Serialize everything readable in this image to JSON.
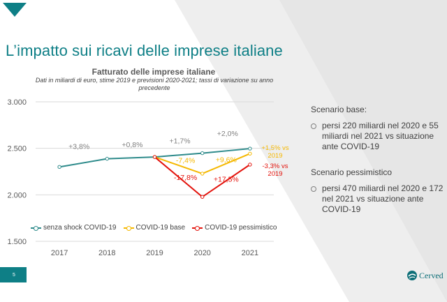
{
  "slide": {
    "title": "L’impatto sui ricavi delle imprese italiane",
    "page_number": "5",
    "logo_text": "Cerved",
    "accent_color": "#0e7f86"
  },
  "side_panel": {
    "base_heading": "Scenario base:",
    "base_bullet": "persi 220 miliardi nel 2020 e 55 miliardi nel 2021 vs situazione ante COVID-19",
    "pess_heading": "Scenario pessimistico",
    "pess_bullet": "persi 470 miliardi nel 2020 e 172 nel 2021 vs situazione ante COVID-19"
  },
  "chart_data": {
    "type": "line",
    "title": "Fatturato delle imprese italiane",
    "subtitle": "Dati in miliardi di euro, stime 2019 e previsioni 2020-2021; tassi di variazione su anno precedente",
    "categories": [
      "2017",
      "2018",
      "2019",
      "2020",
      "2021"
    ],
    "ylim": [
      1500,
      3000
    ],
    "yticks": [
      1500,
      2000,
      2500,
      3000
    ],
    "ytick_labels": [
      "1.500",
      "2.000",
      "2.500",
      "3.000"
    ],
    "grid": true,
    "legend_position": "bottom",
    "series": [
      {
        "name": "senza shock COVID-19",
        "color": "#2e8b8b",
        "values": [
          2300,
          2388,
          2407,
          2448,
          2497
        ],
        "labels": [
          null,
          "+3,8%",
          "+0,8%",
          "+1,7%",
          "+2,0%"
        ],
        "label_color": "#7f7f7f"
      },
      {
        "name": "COVID-19 base",
        "color": "#f5b800",
        "values": [
          null,
          null,
          2407,
          2228,
          2443
        ],
        "labels": [
          null,
          null,
          null,
          "-7,4%",
          "+9,6%"
        ],
        "label_color": "#f5b800"
      },
      {
        "name": "COVID-19 pessimistico",
        "color": "#e3120b",
        "values": [
          null,
          null,
          2407,
          1978,
          2325
        ],
        "labels": [
          null,
          null,
          null,
          "-17,8%",
          "+17,5%"
        ],
        "label_color": "#e3120b"
      }
    ],
    "annotations": [
      {
        "text": "+1,5% vs 2019",
        "color": "#f5b800",
        "series": 1
      },
      {
        "text": "-3,3% vs 2019",
        "color": "#e3120b",
        "series": 2
      }
    ]
  }
}
